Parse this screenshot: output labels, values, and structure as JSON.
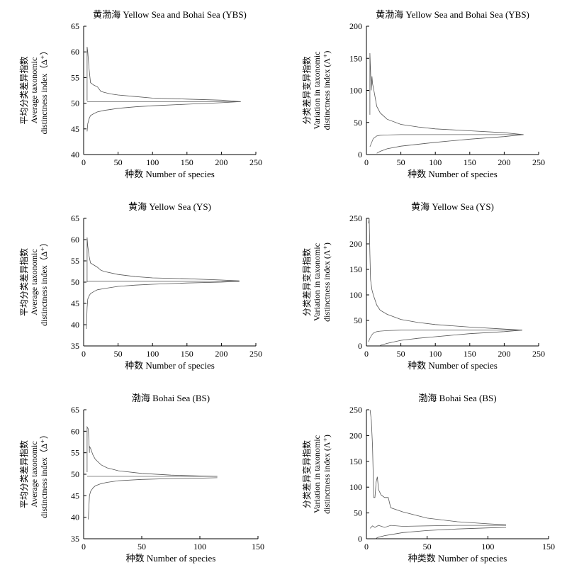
{
  "chart_data": [
    {
      "type": "line",
      "title": "黄渤海  Yellow Sea and Bohai Sea (YBS)",
      "ylabel_lines": [
        "平均分类差异指数",
        "Average taxonomic",
        "distinctness index（Δ⁺）"
      ],
      "xlabel": "种数  Number of species",
      "xlim": [
        0,
        250
      ],
      "ylim": [
        40,
        65
      ],
      "xticks": [
        0,
        50,
        100,
        150,
        200,
        250
      ],
      "yticks": [
        40,
        45,
        50,
        55,
        60,
        65
      ],
      "series": [
        {
          "role": "mean",
          "x": [
            5,
            228
          ],
          "y": [
            50.3,
            50.3
          ]
        },
        {
          "role": "upper",
          "x": [
            5,
            5,
            6,
            8,
            10,
            15,
            20,
            25,
            30,
            40,
            50,
            75,
            100,
            150,
            200,
            228
          ],
          "y": [
            50.5,
            61,
            60,
            56.5,
            54,
            53.5,
            53.2,
            52.3,
            52.1,
            51.8,
            51.6,
            51.3,
            51,
            50.8,
            50.6,
            50.3
          ]
        },
        {
          "role": "lower",
          "x": [
            5,
            6,
            8,
            10,
            15,
            20,
            30,
            40,
            50,
            75,
            100,
            150,
            200,
            228
          ],
          "y": [
            44.5,
            46,
            47,
            47.6,
            48,
            48.3,
            48.6,
            48.8,
            49,
            49.3,
            49.5,
            49.8,
            50.1,
            50.3
          ]
        }
      ]
    },
    {
      "type": "line",
      "title": "黄渤海  Yellow Sea and Bohai Sea (YBS)",
      "ylabel_lines": [
        "分类差异变异指数",
        "Variation in taxonomic",
        "distinctness index (Λ⁺)"
      ],
      "xlabel": "种数  Number of species",
      "xlim": [
        0,
        250
      ],
      "ylim": [
        0,
        200
      ],
      "xticks": [
        0,
        50,
        100,
        150,
        200,
        250
      ],
      "yticks": [
        0,
        50,
        100,
        150,
        200
      ],
      "series": [
        {
          "role": "mean",
          "x": [
            5,
            10,
            15,
            20,
            30,
            50,
            100,
            150,
            200,
            228
          ],
          "y": [
            12,
            25,
            29,
            30,
            30.5,
            31,
            31,
            31,
            31,
            31
          ]
        },
        {
          "role": "upper",
          "x": [
            5,
            5,
            7,
            8,
            9,
            10,
            15,
            20,
            30,
            50,
            75,
            100,
            150,
            200,
            228
          ],
          "y": [
            62,
            158,
            100,
            122,
            110,
            105,
            75,
            65,
            55,
            47,
            43,
            40,
            37,
            34,
            31
          ]
        },
        {
          "role": "lower",
          "x": [
            15,
            20,
            30,
            50,
            100,
            150,
            200,
            228
          ],
          "y": [
            2,
            5,
            9,
            13,
            19,
            24,
            28,
            31
          ]
        }
      ]
    },
    {
      "type": "line",
      "title": "黄海  Yellow Sea (YS)",
      "ylabel_lines": [
        "平均分类差异指数",
        "Average taxonomic",
        "distinctness index（Δ⁺）"
      ],
      "xlabel": "种数  Number of species",
      "xlim": [
        0,
        250
      ],
      "ylim": [
        35,
        65
      ],
      "xticks": [
        0,
        50,
        100,
        150,
        200,
        250
      ],
      "yticks": [
        35,
        40,
        45,
        50,
        55,
        60,
        65
      ],
      "series": [
        {
          "role": "mean",
          "x": [
            5,
            226
          ],
          "y": [
            50.2,
            50.2
          ]
        },
        {
          "role": "upper",
          "x": [
            5,
            5,
            6,
            8,
            10,
            15,
            20,
            25,
            30,
            50,
            75,
            100,
            150,
            200,
            226
          ],
          "y": [
            50,
            60.5,
            58.5,
            56,
            54.5,
            54,
            53.5,
            52.8,
            52.5,
            51.8,
            51.3,
            51,
            50.8,
            50.5,
            50.3
          ]
        },
        {
          "role": "lower",
          "x": [
            4,
            5,
            6,
            8,
            10,
            15,
            20,
            30,
            50,
            75,
            100,
            150,
            200,
            226
          ],
          "y": [
            39,
            44,
            46,
            46.8,
            47.3,
            47.8,
            48.2,
            48.5,
            49,
            49.3,
            49.5,
            49.8,
            50,
            50.2
          ]
        }
      ]
    },
    {
      "type": "line",
      "title": "黄海  Yellow Sea (YS)",
      "ylabel_lines": [
        "分类差异变异指数",
        "Variation in taxonomic",
        "distinctness index (Λ⁺)"
      ],
      "xlabel": "种数  Number of species",
      "xlim": [
        0,
        250
      ],
      "ylim": [
        0,
        250
      ],
      "xticks": [
        0,
        50,
        100,
        150,
        200,
        250
      ],
      "yticks": [
        0,
        50,
        100,
        150,
        200,
        250
      ],
      "series": [
        {
          "role": "mean",
          "x": [
            3,
            5,
            8,
            10,
            15,
            20,
            30,
            50,
            100,
            150,
            200,
            226
          ],
          "y": [
            8,
            15,
            22,
            25,
            28,
            29,
            30,
            31,
            31,
            31,
            31,
            31
          ]
        },
        {
          "role": "upper",
          "x": [
            3,
            4,
            5,
            6,
            8,
            10,
            15,
            20,
            30,
            40,
            50,
            75,
            100,
            150,
            200,
            226
          ],
          "y": [
            240,
            250,
            180,
            130,
            110,
            100,
            80,
            70,
            62,
            57,
            52,
            46,
            42,
            37,
            33,
            31
          ]
        },
        {
          "role": "lower",
          "x": [
            20,
            30,
            50,
            75,
            100,
            150,
            200,
            226
          ],
          "y": [
            1,
            5,
            11,
            15,
            18,
            24,
            28,
            31
          ]
        }
      ]
    },
    {
      "type": "line",
      "title": "渤海  Bohai Sea (BS)",
      "ylabel_lines": [
        "平均分类差异指数",
        "Average taxonomic",
        "distinctness index（Δ⁺）"
      ],
      "xlabel": "种数  Number of species",
      "xlim": [
        0,
        150
      ],
      "ylim": [
        35,
        65
      ],
      "xticks": [
        0,
        50,
        100,
        150
      ],
      "yticks": [
        35,
        40,
        45,
        50,
        55,
        60,
        65
      ],
      "series": [
        {
          "role": "mean",
          "x": [
            3,
            115
          ],
          "y": [
            49.5,
            49.5
          ]
        },
        {
          "role": "upper",
          "x": [
            3,
            3,
            4,
            5,
            5,
            6,
            8,
            10,
            15,
            20,
            30,
            50,
            75,
            100,
            115
          ],
          "y": [
            50.5,
            61,
            60.5,
            55,
            56.5,
            56,
            54.5,
            53.5,
            52.2,
            51.5,
            50.8,
            50.2,
            49.8,
            49.6,
            49.5
          ]
        },
        {
          "role": "lower",
          "x": [
            4,
            5,
            6,
            8,
            10,
            15,
            20,
            30,
            50,
            75,
            100,
            115
          ],
          "y": [
            39.5,
            45,
            46,
            46.8,
            47.3,
            47.8,
            48.1,
            48.5,
            48.8,
            49,
            49.1,
            49.2
          ]
        }
      ]
    },
    {
      "type": "line",
      "title": "渤海  Bohai Sea (BS)",
      "ylabel_lines": [
        "分类差异变异指数",
        "Variation in taxonomic",
        "distinctness index (Λ⁺)"
      ],
      "xlabel": "种类数  Number of species",
      "xlim": [
        0,
        150
      ],
      "ylim": [
        0,
        250
      ],
      "xticks": [
        0,
        50,
        100,
        150
      ],
      "yticks": [
        0,
        50,
        100,
        150,
        200,
        250
      ],
      "series": [
        {
          "role": "mean",
          "x": [
            3,
            5,
            7,
            10,
            15,
            20,
            30,
            50,
            75,
            100,
            115
          ],
          "y": [
            20,
            25,
            22,
            26,
            22,
            26,
            24,
            25,
            26,
            26,
            26
          ]
        },
        {
          "role": "upper",
          "x": [
            3,
            4,
            5,
            6,
            7,
            8,
            9,
            10,
            12,
            15,
            18,
            20,
            30,
            50,
            75,
            100,
            115
          ],
          "y": [
            250,
            230,
            180,
            80,
            80,
            110,
            120,
            95,
            85,
            80,
            80,
            60,
            52,
            40,
            33,
            29,
            27
          ]
        },
        {
          "role": "lower",
          "x": [
            7,
            10,
            15,
            20,
            30,
            50,
            75,
            100,
            115
          ],
          "y": [
            0,
            3,
            6,
            8,
            12,
            16,
            19,
            21,
            22
          ]
        }
      ]
    }
  ]
}
